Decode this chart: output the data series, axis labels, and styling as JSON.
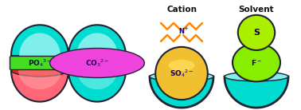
{
  "bg_color": "#ffffff",
  "capsule_color": "#00ddd0",
  "capsule_inner": "#80eeea",
  "capsule_outline": "#222233",
  "cap1_bottom_fill": "#ff6677",
  "cap1_bottom_inner": "#ffaaaa",
  "cap1_red_band": "#ee2222",
  "cap1_label_bg": "#44dd22",
  "cap1_label_text": "PO$_4$$^{3-}$",
  "cap2_label_bg": "#ee44dd",
  "cap2_label_text": "CO$_3$$^{2-}$",
  "cap3_bowl_fill": "#00ddd0",
  "cap3_so4_color": "#f0c030",
  "cap3_so4_inner": "#ffe060",
  "cap3_so4_shadow": "#c8e890",
  "cap3_label_text": "SO$_4$$^{2-}$",
  "cap3_cation_color": "#ff8800",
  "cap3_title": "Cation",
  "cap4_bowl_fill": "#00ddd0",
  "cap4_f_color": "#88ee00",
  "cap4_s_color": "#aaee00",
  "cap4_inner_label": "F$^-$",
  "cap4_outer_label": "S",
  "cap4_title": "Solvent",
  "label_color": "#1a0055",
  "label_fs": 6.5,
  "title_fs": 7.5
}
